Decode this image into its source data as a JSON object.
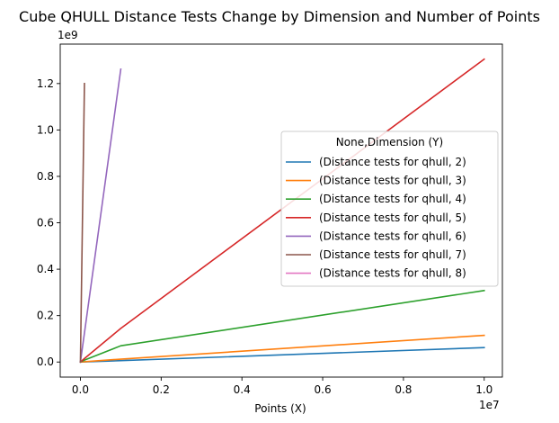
{
  "chart_data": {
    "type": "line",
    "title": "Cube QHULL Distance Tests Change by Dimension and Number of Points",
    "xlabel": "Points (X)",
    "ylabel": "",
    "x_offset_label": "1e7",
    "y_offset_label": "1e9",
    "xlim": [
      -500000,
      10450000
    ],
    "ylim": [
      -65000000,
      1370000000
    ],
    "xticks": [
      {
        "value": 0,
        "label": "0.0"
      },
      {
        "value": 2000000,
        "label": "0.2"
      },
      {
        "value": 4000000,
        "label": "0.4"
      },
      {
        "value": 6000000,
        "label": "0.6"
      },
      {
        "value": 8000000,
        "label": "0.8"
      },
      {
        "value": 10000000,
        "label": "1.0"
      }
    ],
    "yticks": [
      {
        "value": 0,
        "label": "0.0"
      },
      {
        "value": 200000000,
        "label": "0.2"
      },
      {
        "value": 400000000,
        "label": "0.4"
      },
      {
        "value": 600000000,
        "label": "0.6"
      },
      {
        "value": 800000000,
        "label": "0.8"
      },
      {
        "value": 1000000000,
        "label": "1.0"
      },
      {
        "value": 1200000000,
        "label": "1.2"
      }
    ],
    "grid": false,
    "legend": {
      "title": "None,Dimension (Y)",
      "placement": "center-right"
    },
    "series": [
      {
        "name": "(Distance tests for qhull, 2)",
        "color": "#1f77b4",
        "x": [
          0,
          100000,
          1000000,
          10000000
        ],
        "y": [
          0,
          500000,
          6000000,
          62000000
        ]
      },
      {
        "name": "(Distance tests for qhull, 3)",
        "color": "#ff7f0e",
        "x": [
          0,
          100000,
          1000000,
          10000000
        ],
        "y": [
          0,
          1300000,
          12500000,
          115000000
        ]
      },
      {
        "name": "(Distance tests for qhull, 4)",
        "color": "#2ca02c",
        "x": [
          0,
          100000,
          1000000,
          10000000
        ],
        "y": [
          0,
          8000000,
          70000000,
          308000000
        ]
      },
      {
        "name": "(Distance tests for qhull, 5)",
        "color": "#d62728",
        "x": [
          0,
          100000,
          1000000,
          10000000
        ],
        "y": [
          0,
          15000000,
          145000000,
          1305000000
        ]
      },
      {
        "name": "(Distance tests for qhull, 6)",
        "color": "#9467bd",
        "x": [
          0,
          100000,
          1000000
        ],
        "y": [
          0,
          125000000,
          1262000000
        ]
      },
      {
        "name": "(Distance tests for qhull, 7)",
        "color": "#8c564b",
        "x": [
          0,
          100000
        ],
        "y": [
          0,
          1200000000
        ]
      },
      {
        "name": "(Distance tests for qhull, 8)",
        "color": "#e377c2",
        "x": [
          0
        ],
        "y": [
          0
        ]
      }
    ]
  }
}
